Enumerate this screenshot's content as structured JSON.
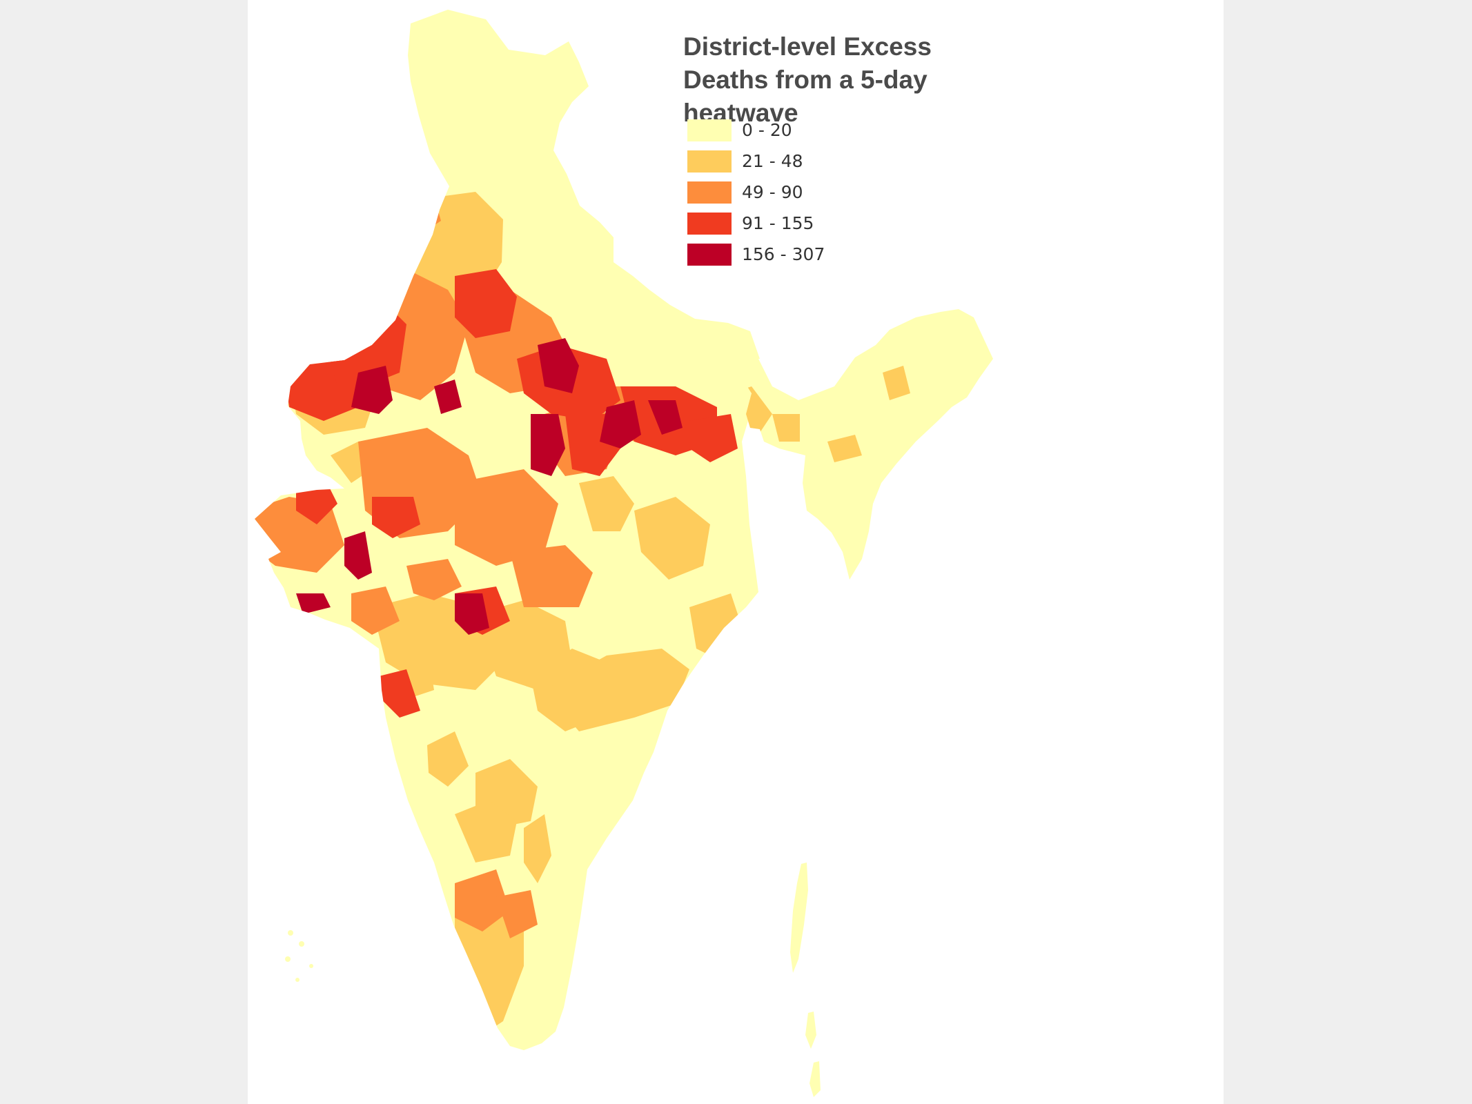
{
  "title": "District-level Excess Deaths from a 5-day heatwave",
  "legend": [
    {
      "label": "0 - 20",
      "color": "#ffffb2"
    },
    {
      "label": "21 - 48",
      "color": "#fecc5c"
    },
    {
      "label": "49 - 90",
      "color": "#fd8d3c"
    },
    {
      "label": "91 - 155",
      "color": "#f03b20"
    },
    {
      "label": "156 - 307",
      "color": "#bd0026"
    }
  ],
  "background_color": "#efefef",
  "panel_color": "#ffffff"
}
